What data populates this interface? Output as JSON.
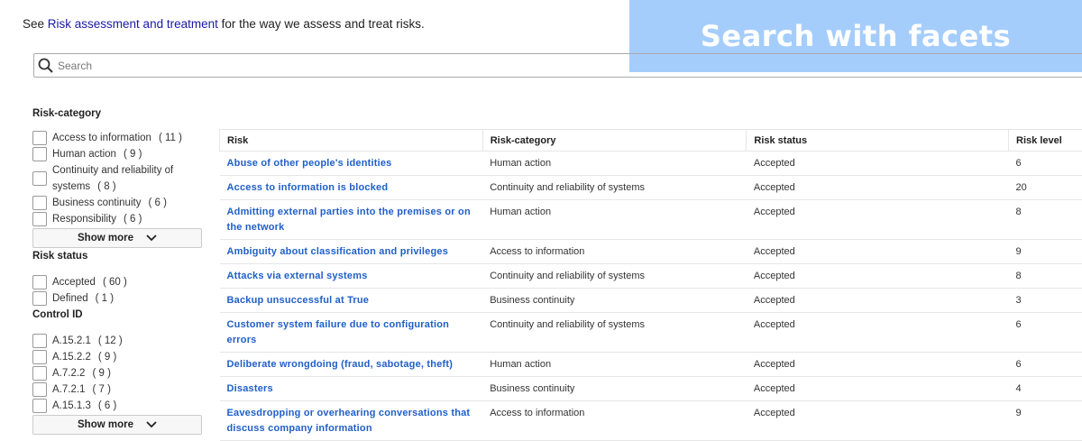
{
  "intro": {
    "prefix": "See ",
    "link": "Risk assessment and treatment",
    "suffix": " for the way we assess and treat risks."
  },
  "banner": "Search with facets",
  "search": {
    "placeholder": "Search",
    "value": ""
  },
  "facets": [
    {
      "title": "Risk-category",
      "options": [
        {
          "label": "Access to information",
          "count": "( 11 )"
        },
        {
          "label": "Human action",
          "count": "( 9 )"
        },
        {
          "label": "Continuity and reliability of systems",
          "count": "( 8 )"
        },
        {
          "label": "Business continuity",
          "count": "( 6 )"
        },
        {
          "label": "Responsibility",
          "count": "( 6 )"
        }
      ],
      "more": "Show more"
    },
    {
      "title": "Risk status",
      "options": [
        {
          "label": "Accepted",
          "count": "( 60 )"
        },
        {
          "label": "Defined",
          "count": "( 1 )"
        }
      ]
    },
    {
      "title": "Control ID",
      "options": [
        {
          "label": "A.15.2.1",
          "count": "( 12 )"
        },
        {
          "label": "A.15.2.2",
          "count": "( 9 )"
        },
        {
          "label": "A.7.2.2",
          "count": "( 9 )"
        },
        {
          "label": "A.7.2.1",
          "count": "( 7 )"
        },
        {
          "label": "A.15.1.3",
          "count": "( 6 )"
        }
      ],
      "more": "Show more"
    }
  ],
  "table": {
    "columns": [
      "Risk",
      "Risk-category",
      "Risk status",
      "Risk level"
    ],
    "rows": [
      [
        "Abuse of other people's identities",
        "Human action",
        "Accepted",
        "6"
      ],
      [
        "Access to information is blocked",
        "Continuity and reliability of systems",
        "Accepted",
        "20"
      ],
      [
        "Admitting external parties into the premises or on the network",
        "Human action",
        "Accepted",
        "8"
      ],
      [
        "Ambiguity about classification and privileges",
        "Access to information",
        "Accepted",
        "9"
      ],
      [
        "Attacks via external systems",
        "Continuity and reliability of systems",
        "Accepted",
        "8"
      ],
      [
        "Backup unsuccessful at True",
        "Business continuity",
        "Accepted",
        "3"
      ],
      [
        "Customer system failure due to configuration errors",
        "Continuity and reliability of systems",
        "Accepted",
        "6"
      ],
      [
        "Deliberate wrongdoing (fraud, sabotage, theft)",
        "Human action",
        "Accepted",
        "6"
      ],
      [
        "Disasters",
        "Business continuity",
        "Accepted",
        "4"
      ],
      [
        "Eavesdropping or overhearing conversations that discuss company information",
        "Access to information",
        "Accepted",
        "9"
      ]
    ]
  }
}
